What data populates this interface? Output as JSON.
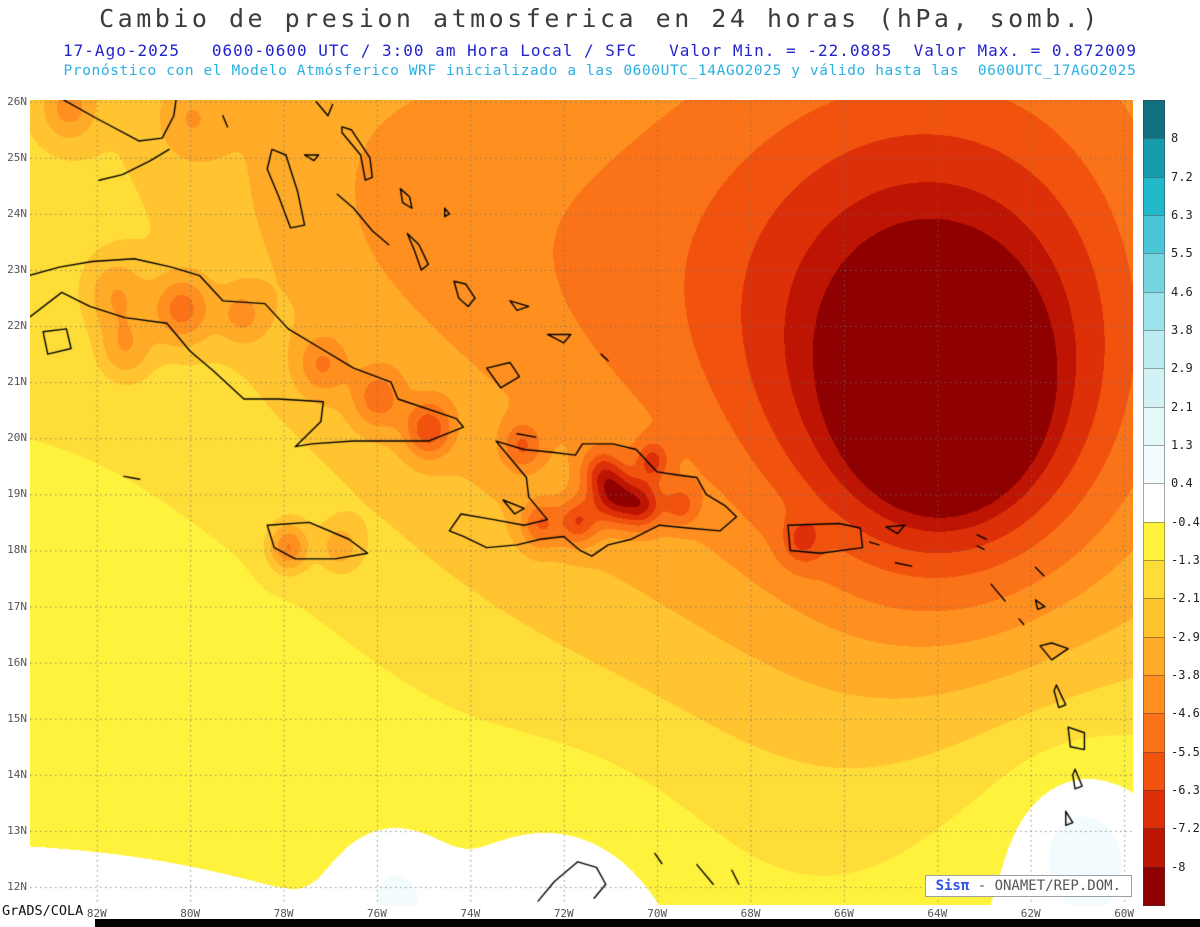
{
  "header": {
    "title": "Cambio de presion atmosferica en 24 horas (hPa, somb.)",
    "line2": "17-Ago-2025   0600-0600 UTC / 3:00 am Hora Local / SFC   Valor Min. = -22.0885  Valor Max. = 0.872009",
    "line3": "Pronóstico con el Modelo Atmósferico WRF inicializado a las 0600UTC_14AGO2025 y válido hasta las  0600UTC_17AGO2025"
  },
  "footer": {
    "grads_credit": "GrADS/COLA",
    "watermark_brand": "Sisπ",
    "watermark_text": " - ONAMET/REP.DOM."
  },
  "map": {
    "lon_range": [
      -83.43,
      -59.81
    ],
    "lat_range": [
      11.68,
      26.03
    ],
    "lat_ticks": [
      "26N",
      "25N",
      "24N",
      "23N",
      "22N",
      "21N",
      "20N",
      "19N",
      "18N",
      "17N",
      "16N",
      "15N",
      "14N",
      "13N",
      "12N"
    ],
    "lon_ticks": [
      "82W",
      "80W",
      "78W",
      "76W",
      "74W",
      "72W",
      "70W",
      "68W",
      "66W",
      "64W",
      "62W",
      "60W"
    ]
  },
  "chart_data": {
    "type": "heatmap",
    "title": "Cambio de presion atmosferica en 24 horas (hPa, somb.)",
    "units": "hPa",
    "value_min": -22.0885,
    "value_max": 0.872009,
    "valid_date": "17-Ago-2025",
    "valid_period": "0600-0600 UTC / 3:00 am Hora Local / SFC",
    "model_init": "0600UTC_14AGO2025",
    "model_valid": "0600UTC_17AGO2025",
    "xlabel": "",
    "ylabel": "",
    "legend_position": "right",
    "grid": "dotted",
    "levels": [
      8,
      7.2,
      6.3,
      5.5,
      4.6,
      3.8,
      2.9,
      2.1,
      1.3,
      0.4,
      -0.4,
      -1.3,
      -2.1,
      -2.9,
      -3.8,
      -4.6,
      -5.5,
      -6.3,
      -7.2,
      -8
    ],
    "level_labels": [
      "8",
      "7.2",
      "6.3",
      "5.5",
      "4.6",
      "3.8",
      "2.9",
      "2.1",
      "1.3",
      "0.4",
      "-0.4",
      "-1.3",
      "-2.1",
      "-2.9",
      "-3.8",
      "-4.6",
      "-5.5",
      "-6.3",
      "-7.2",
      "-8"
    ],
    "palette": [
      "#10707f",
      "#169bad",
      "#22b8c9",
      "#4ac7d6",
      "#74d5e1",
      "#9be2ea",
      "#bcebf1",
      "#d3f2f6",
      "#e4f8fa",
      "#f2fbfd",
      "#ffffff",
      "#fff23d",
      "#ffdd38",
      "#ffc430",
      "#ffab28",
      "#ff9020",
      "#fb7318",
      "#f1530f",
      "#dd3008",
      "#bd1403",
      "#8f0000"
    ],
    "pressure_fall_center": {
      "lon": -63.9,
      "lat": 20.8,
      "min_hpa": -22.0885
    },
    "field_model": {
      "base": {
        "lat0": 12,
        "value0": -0.3,
        "per_deg": -0.12
      },
      "blobs": [
        [
          -63.9,
          20.8,
          -15.0,
          0.9
        ],
        [
          -63.9,
          20.8,
          -4.5,
          2.4
        ],
        [
          -63.9,
          20.9,
          -2.8,
          6.5
        ],
        [
          -62.5,
          23.5,
          -1.2,
          3.5
        ],
        [
          -66.8,
          23.2,
          -1.0,
          3.0
        ],
        [
          -72.5,
          22.5,
          -1.4,
          3.5
        ],
        [
          -76.5,
          24.5,
          -1.0,
          2.5
        ],
        [
          -60.6,
          12.4,
          1.3,
          2.5
        ],
        [
          -61.0,
          12.9,
          1.0,
          0.9
        ],
        [
          -75.6,
          11.9,
          0.95,
          0.7
        ],
        [
          -71.8,
          11.5,
          0.9,
          1.8
        ],
        [
          -82.6,
          25.9,
          -2.2,
          0.4
        ],
        [
          -80.0,
          25.7,
          -1.4,
          0.5
        ],
        [
          -81.6,
          22.55,
          -2.0,
          0.45
        ],
        [
          -80.2,
          22.3,
          -3.0,
          0.45
        ],
        [
          -78.9,
          22.2,
          -1.8,
          0.35
        ],
        [
          -77.2,
          21.3,
          -2.0,
          0.4
        ],
        [
          -76.0,
          20.7,
          -2.2,
          0.4
        ],
        [
          -74.9,
          20.15,
          -3.2,
          0.35
        ],
        [
          -81.4,
          21.6,
          -2.0,
          0.4
        ],
        [
          -77.9,
          18.05,
          -3.2,
          0.3
        ],
        [
          -76.8,
          18.05,
          -1.8,
          0.3
        ],
        [
          -72.9,
          19.85,
          -2.2,
          0.3
        ],
        [
          -72.5,
          18.45,
          -2.6,
          0.3
        ],
        [
          -71.7,
          18.5,
          -3.0,
          0.3
        ],
        [
          -71.2,
          19.4,
          -2.3,
          0.3
        ],
        [
          -70.9,
          18.95,
          -4.0,
          0.35
        ],
        [
          -70.3,
          18.8,
          -3.2,
          0.3
        ],
        [
          -70.1,
          19.6,
          -2.4,
          0.25
        ],
        [
          -69.5,
          18.8,
          -2.0,
          0.25
        ],
        [
          -66.9,
          18.15,
          -1.6,
          0.3
        ]
      ]
    }
  },
  "coastlines": {
    "paths": [
      [
        [
          -83.45,
          22.9
        ],
        [
          -82.8,
          23.05
        ],
        [
          -82.1,
          23.15
        ],
        [
          -81.2,
          23.2
        ],
        [
          -80.4,
          23.05
        ],
        [
          -79.8,
          22.9
        ],
        [
          -79.3,
          22.45
        ],
        [
          -78.4,
          22.4
        ],
        [
          -77.9,
          21.95
        ],
        [
          -77.2,
          21.6
        ],
        [
          -76.5,
          21.25
        ],
        [
          -75.7,
          21.0
        ],
        [
          -75.55,
          20.7
        ],
        [
          -74.3,
          20.35
        ],
        [
          -74.15,
          20.2
        ],
        [
          -74.9,
          19.95
        ],
        [
          -75.7,
          19.95
        ],
        [
          -76.5,
          19.95
        ],
        [
          -77.4,
          19.9
        ],
        [
          -77.75,
          19.85
        ],
        [
          -77.2,
          20.3
        ],
        [
          -77.15,
          20.65
        ],
        [
          -78.1,
          20.7
        ],
        [
          -78.85,
          20.7
        ],
        [
          -79.5,
          21.2
        ],
        [
          -80.0,
          21.55
        ],
        [
          -80.5,
          22.05
        ],
        [
          -81.4,
          22.15
        ],
        [
          -82.15,
          22.35
        ],
        [
          -82.75,
          22.6
        ],
        [
          -83.45,
          22.15
        ]
      ],
      [
        [
          -83.15,
          21.9
        ],
        [
          -82.65,
          21.95
        ],
        [
          -82.55,
          21.6
        ],
        [
          -83.05,
          21.5
        ],
        [
          -83.15,
          21.9
        ]
      ],
      [
        [
          -82.75,
          26.05
        ],
        [
          -82.0,
          25.7
        ],
        [
          -81.1,
          25.3
        ],
        [
          -80.6,
          25.35
        ],
        [
          -80.35,
          25.75
        ],
        [
          -80.3,
          26.05
        ]
      ],
      [
        [
          -80.45,
          25.15
        ],
        [
          -80.85,
          24.95
        ],
        [
          -81.45,
          24.7
        ],
        [
          -81.95,
          24.6
        ]
      ],
      [
        [
          -78.35,
          18.45
        ],
        [
          -77.45,
          18.5
        ],
        [
          -76.6,
          18.2
        ],
        [
          -76.2,
          17.95
        ],
        [
          -76.9,
          17.85
        ],
        [
          -77.75,
          17.85
        ],
        [
          -78.2,
          18.05
        ],
        [
          -78.35,
          18.45
        ]
      ],
      [
        [
          -81.42,
          19.32
        ],
        [
          -81.08,
          19.27
        ]
      ],
      [
        [
          -73.45,
          19.95
        ],
        [
          -72.85,
          19.8
        ],
        [
          -72.25,
          19.75
        ],
        [
          -71.75,
          19.7
        ],
        [
          -71.6,
          19.9
        ],
        [
          -70.95,
          19.9
        ],
        [
          -70.45,
          19.8
        ],
        [
          -70.0,
          19.4
        ],
        [
          -69.6,
          19.35
        ],
        [
          -69.15,
          19.3
        ],
        [
          -68.95,
          19.0
        ],
        [
          -68.55,
          18.8
        ],
        [
          -68.3,
          18.6
        ],
        [
          -68.65,
          18.35
        ],
        [
          -69.35,
          18.4
        ],
        [
          -69.95,
          18.45
        ],
        [
          -70.55,
          18.2
        ],
        [
          -71.05,
          18.1
        ],
        [
          -71.4,
          17.9
        ],
        [
          -71.65,
          18.0
        ],
        [
          -72.0,
          18.25
        ],
        [
          -72.5,
          18.2
        ],
        [
          -73.0,
          18.1
        ],
        [
          -73.65,
          18.05
        ],
        [
          -74.15,
          18.25
        ],
        [
          -74.45,
          18.35
        ],
        [
          -74.2,
          18.65
        ],
        [
          -73.5,
          18.55
        ],
        [
          -72.85,
          18.45
        ],
        [
          -72.35,
          18.55
        ],
        [
          -72.75,
          18.95
        ],
        [
          -72.8,
          19.3
        ],
        [
          -73.1,
          19.6
        ],
        [
          -73.45,
          19.95
        ]
      ],
      [
        [
          -73.3,
          18.9
        ],
        [
          -72.85,
          18.75
        ],
        [
          -73.05,
          18.65
        ],
        [
          -73.3,
          18.9
        ]
      ],
      [
        [
          -73.0,
          20.08
        ],
        [
          -72.6,
          20.02
        ]
      ],
      [
        [
          -67.2,
          18.45
        ],
        [
          -66.1,
          18.48
        ],
        [
          -65.65,
          18.4
        ],
        [
          -65.6,
          18.05
        ],
        [
          -66.5,
          17.95
        ],
        [
          -67.15,
          18.0
        ],
        [
          -67.2,
          18.45
        ]
      ],
      [
        [
          -65.45,
          18.15
        ],
        [
          -65.25,
          18.1
        ]
      ],
      [
        [
          -78.25,
          25.15
        ],
        [
          -77.95,
          25.05
        ],
        [
          -77.7,
          24.4
        ],
        [
          -77.55,
          23.8
        ],
        [
          -77.85,
          23.75
        ],
        [
          -78.1,
          24.3
        ],
        [
          -78.35,
          24.8
        ],
        [
          -78.25,
          25.15
        ]
      ],
      [
        [
          -77.55,
          25.05
        ],
        [
          -77.25,
          25.05
        ],
        [
          -77.35,
          24.95
        ],
        [
          -77.55,
          25.05
        ]
      ],
      [
        [
          -76.75,
          25.55
        ],
        [
          -76.55,
          25.5
        ],
        [
          -76.15,
          25.0
        ],
        [
          -76.1,
          24.65
        ],
        [
          -76.25,
          24.6
        ],
        [
          -76.35,
          25.05
        ],
        [
          -76.75,
          25.45
        ],
        [
          -76.75,
          25.55
        ]
      ],
      [
        [
          -77.3,
          26.0
        ],
        [
          -77.05,
          25.75
        ],
        [
          -76.95,
          25.95
        ]
      ],
      [
        [
          -79.3,
          25.75
        ],
        [
          -79.2,
          25.55
        ]
      ],
      [
        [
          -76.85,
          24.35
        ],
        [
          -76.5,
          24.1
        ],
        [
          -76.1,
          23.7
        ],
        [
          -75.75,
          23.45
        ]
      ],
      [
        [
          -75.5,
          24.45
        ],
        [
          -75.3,
          24.3
        ],
        [
          -75.25,
          24.1
        ],
        [
          -75.45,
          24.2
        ],
        [
          -75.5,
          24.45
        ]
      ],
      [
        [
          -74.55,
          24.1
        ],
        [
          -74.45,
          24.0
        ],
        [
          -74.55,
          23.95
        ],
        [
          -74.55,
          24.1
        ]
      ],
      [
        [
          -75.35,
          23.65
        ],
        [
          -75.1,
          23.45
        ],
        [
          -74.9,
          23.1
        ],
        [
          -75.05,
          23.0
        ],
        [
          -75.2,
          23.35
        ],
        [
          -75.35,
          23.65
        ]
      ],
      [
        [
          -74.35,
          22.8
        ],
        [
          -74.1,
          22.75
        ],
        [
          -73.9,
          22.5
        ],
        [
          -74.05,
          22.35
        ],
        [
          -74.25,
          22.5
        ],
        [
          -74.35,
          22.8
        ]
      ],
      [
        [
          -73.15,
          22.45
        ],
        [
          -72.75,
          22.35
        ],
        [
          -73.0,
          22.28
        ],
        [
          -73.15,
          22.45
        ]
      ],
      [
        [
          -73.65,
          21.25
        ],
        [
          -73.15,
          21.35
        ],
        [
          -72.95,
          21.1
        ],
        [
          -73.35,
          20.9
        ],
        [
          -73.65,
          21.25
        ]
      ],
      [
        [
          -72.35,
          21.85
        ],
        [
          -71.85,
          21.85
        ],
        [
          -72.0,
          21.7
        ],
        [
          -72.35,
          21.85
        ]
      ],
      [
        [
          -71.2,
          21.5
        ],
        [
          -71.05,
          21.38
        ]
      ],
      [
        [
          -65.1,
          18.42
        ],
        [
          -64.7,
          18.45
        ],
        [
          -64.85,
          18.3
        ],
        [
          -65.1,
          18.42
        ]
      ],
      [
        [
          -64.9,
          17.78
        ],
        [
          -64.55,
          17.72
        ]
      ],
      [
        [
          -63.15,
          18.28
        ],
        [
          -62.95,
          18.2
        ]
      ],
      [
        [
          -63.15,
          18.08
        ],
        [
          -63.0,
          18.02
        ]
      ],
      [
        [
          -61.9,
          17.7
        ],
        [
          -61.72,
          17.55
        ]
      ],
      [
        [
          -61.9,
          17.12
        ],
        [
          -61.7,
          17.0
        ],
        [
          -61.85,
          16.95
        ],
        [
          -61.9,
          17.12
        ]
      ],
      [
        [
          -62.85,
          17.4
        ],
        [
          -62.65,
          17.2
        ],
        [
          -62.55,
          17.1
        ]
      ],
      [
        [
          -62.25,
          16.78
        ],
        [
          -62.15,
          16.68
        ]
      ],
      [
        [
          -61.8,
          16.3
        ],
        [
          -61.55,
          16.35
        ],
        [
          -61.2,
          16.25
        ],
        [
          -61.55,
          16.05
        ],
        [
          -61.8,
          16.3
        ]
      ],
      [
        [
          -61.45,
          15.6
        ],
        [
          -61.25,
          15.25
        ],
        [
          -61.4,
          15.2
        ],
        [
          -61.5,
          15.5
        ],
        [
          -61.45,
          15.6
        ]
      ],
      [
        [
          -61.2,
          14.85
        ],
        [
          -60.85,
          14.75
        ],
        [
          -60.85,
          14.45
        ],
        [
          -61.15,
          14.5
        ],
        [
          -61.2,
          14.85
        ]
      ],
      [
        [
          -61.05,
          14.1
        ],
        [
          -60.9,
          13.8
        ],
        [
          -61.05,
          13.75
        ],
        [
          -61.1,
          14.0
        ],
        [
          -61.05,
          14.1
        ]
      ],
      [
        [
          -61.25,
          13.35
        ],
        [
          -61.1,
          13.15
        ],
        [
          -61.25,
          13.1
        ],
        [
          -61.25,
          13.35
        ]
      ],
      [
        [
          -61.75,
          12.2
        ],
        [
          -61.6,
          12.0
        ],
        [
          -61.78,
          11.98
        ],
        [
          -61.75,
          12.2
        ]
      ],
      [
        [
          -72.55,
          11.75
        ],
        [
          -72.2,
          12.1
        ],
        [
          -71.7,
          12.45
        ],
        [
          -71.3,
          12.35
        ],
        [
          -71.1,
          12.05
        ],
        [
          -71.35,
          11.8
        ]
      ],
      [
        [
          -70.05,
          12.6
        ],
        [
          -69.9,
          12.42
        ]
      ],
      [
        [
          -69.15,
          12.4
        ],
        [
          -68.8,
          12.05
        ]
      ],
      [
        [
          -68.4,
          12.3
        ],
        [
          -68.25,
          12.05
        ]
      ]
    ]
  }
}
